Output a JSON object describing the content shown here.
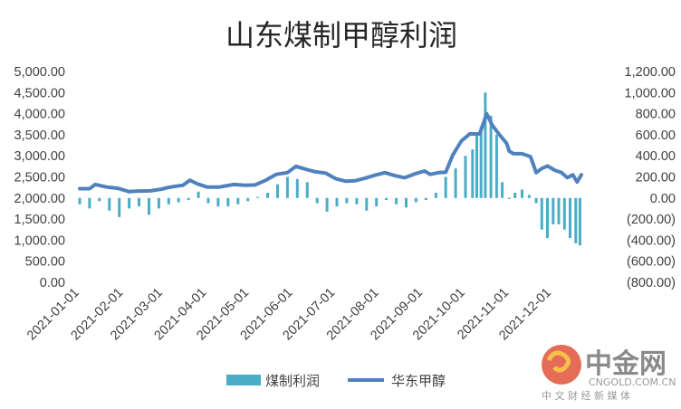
{
  "chart_data": {
    "type": "bar+line",
    "title": "山东煤制甲醇利润",
    "legend": {
      "placement": "bottom",
      "entries": [
        {
          "name": "煤制利润",
          "kind": "bar",
          "color": "#4bacc6"
        },
        {
          "name": "华东甲醇",
          "kind": "line",
          "color": "#4f81bd"
        }
      ]
    },
    "left_axis": {
      "range": [
        0,
        5000
      ],
      "ticks": [
        0,
        500,
        1000,
        1500,
        2000,
        2500,
        3000,
        3500,
        4000,
        4500,
        5000
      ],
      "tick_labels": [
        "0.00",
        "500.00",
        "1,000.00",
        "1,500.00",
        "2,000.00",
        "2,500.00",
        "3,000.00",
        "3,500.00",
        "4,000.00",
        "4,500.00",
        "5,000.00"
      ]
    },
    "right_axis": {
      "range": [
        -800,
        1200
      ],
      "ticks": [
        -800,
        -600,
        -400,
        -200,
        0,
        200,
        400,
        600,
        800,
        1000,
        1200
      ],
      "tick_labels": [
        "(800.00)",
        "(600.00)",
        "(400.00)",
        "(200.00)",
        "0.00",
        "200.00",
        "400.00",
        "600.00",
        "800.00",
        "1,000.00",
        "1,200.00"
      ]
    },
    "x_axis": {
      "start": "2021-01-01",
      "end": "2021-12-22",
      "tick_labels": [
        "2021-01-01",
        "2021-02-01",
        "2021-03-01",
        "2021-04-01",
        "2021-05-01",
        "2021-06-01",
        "2021-07-01",
        "2021-08-01",
        "2021-09-01",
        "2021-10-01",
        "2021-11-01",
        "2021-12-01"
      ]
    },
    "grid": false,
    "series": [
      {
        "name": "华东甲醇",
        "axis": "left",
        "x": [
          "2021-01-01",
          "2021-01-08",
          "2021-01-12",
          "2021-01-20",
          "2021-01-28",
          "2021-02-05",
          "2021-02-10",
          "2021-02-20",
          "2021-02-28",
          "2021-03-05",
          "2021-03-10",
          "2021-03-15",
          "2021-03-20",
          "2021-03-25",
          "2021-04-01",
          "2021-04-10",
          "2021-04-20",
          "2021-04-28",
          "2021-05-05",
          "2021-05-12",
          "2021-05-20",
          "2021-05-28",
          "2021-06-03",
          "2021-06-10",
          "2021-06-17",
          "2021-06-24",
          "2021-07-01",
          "2021-07-08",
          "2021-07-15",
          "2021-07-22",
          "2021-07-29",
          "2021-08-05",
          "2021-08-12",
          "2021-08-19",
          "2021-08-26",
          "2021-09-02",
          "2021-09-06",
          "2021-09-12",
          "2021-09-17",
          "2021-09-22",
          "2021-09-28",
          "2021-10-04",
          "2021-10-08",
          "2021-10-11",
          "2021-10-14",
          "2021-10-16",
          "2021-10-20",
          "2021-10-25",
          "2021-10-30",
          "2021-11-01",
          "2021-11-04",
          "2021-11-10",
          "2021-11-16",
          "2021-11-20",
          "2021-11-24",
          "2021-11-28",
          "2021-12-03",
          "2021-12-08",
          "2021-12-12",
          "2021-12-16",
          "2021-12-19",
          "2021-12-22"
        ],
        "values": [
          2220,
          2220,
          2320,
          2260,
          2230,
          2150,
          2160,
          2170,
          2210,
          2250,
          2280,
          2300,
          2420,
          2340,
          2260,
          2260,
          2320,
          2300,
          2310,
          2410,
          2560,
          2600,
          2750,
          2680,
          2620,
          2590,
          2460,
          2400,
          2410,
          2470,
          2540,
          2600,
          2530,
          2480,
          2570,
          2640,
          2560,
          2600,
          2610,
          3020,
          3350,
          3520,
          3520,
          3520,
          3800,
          4000,
          3720,
          3500,
          3300,
          3110,
          3050,
          3050,
          2980,
          2600,
          2700,
          2760,
          2660,
          2600,
          2480,
          2550,
          2380,
          2550
        ]
      },
      {
        "name": "煤制利润",
        "axis": "right",
        "x": [
          "2021-01-01",
          "2021-01-08",
          "2021-01-15",
          "2021-01-22",
          "2021-01-29",
          "2021-02-05",
          "2021-02-12",
          "2021-02-19",
          "2021-02-26",
          "2021-03-05",
          "2021-03-12",
          "2021-03-19",
          "2021-03-26",
          "2021-04-02",
          "2021-04-09",
          "2021-04-16",
          "2021-04-23",
          "2021-04-30",
          "2021-05-07",
          "2021-05-14",
          "2021-05-21",
          "2021-05-28",
          "2021-06-04",
          "2021-06-11",
          "2021-06-18",
          "2021-06-25",
          "2021-07-02",
          "2021-07-09",
          "2021-07-16",
          "2021-07-23",
          "2021-07-30",
          "2021-08-06",
          "2021-08-13",
          "2021-08-20",
          "2021-08-27",
          "2021-09-03",
          "2021-09-10",
          "2021-09-17",
          "2021-09-24",
          "2021-10-01",
          "2021-10-06",
          "2021-10-09",
          "2021-10-12",
          "2021-10-15",
          "2021-10-19",
          "2021-10-23",
          "2021-10-27",
          "2021-11-01",
          "2021-11-05",
          "2021-11-10",
          "2021-11-15",
          "2021-11-20",
          "2021-11-24",
          "2021-11-28",
          "2021-12-02",
          "2021-12-06",
          "2021-12-10",
          "2021-12-14",
          "2021-12-18",
          "2021-12-21"
        ],
        "values": [
          -60,
          -100,
          -30,
          -120,
          -180,
          -100,
          -80,
          -160,
          -100,
          -60,
          -40,
          -20,
          60,
          -50,
          -80,
          -80,
          -60,
          -30,
          10,
          50,
          130,
          200,
          180,
          150,
          -50,
          -130,
          -80,
          -50,
          -60,
          -120,
          -80,
          -20,
          -60,
          -90,
          -40,
          -20,
          50,
          200,
          280,
          400,
          460,
          600,
          680,
          1000,
          780,
          600,
          150,
          -10,
          50,
          80,
          30,
          -50,
          -300,
          -380,
          -250,
          -250,
          -300,
          -380,
          -430,
          -450
        ]
      }
    ]
  },
  "watermark": {
    "name": "中金网",
    "domain": "CNGOLD.COM.CN",
    "tagline": "中 文 财 经 新 媒 体"
  }
}
